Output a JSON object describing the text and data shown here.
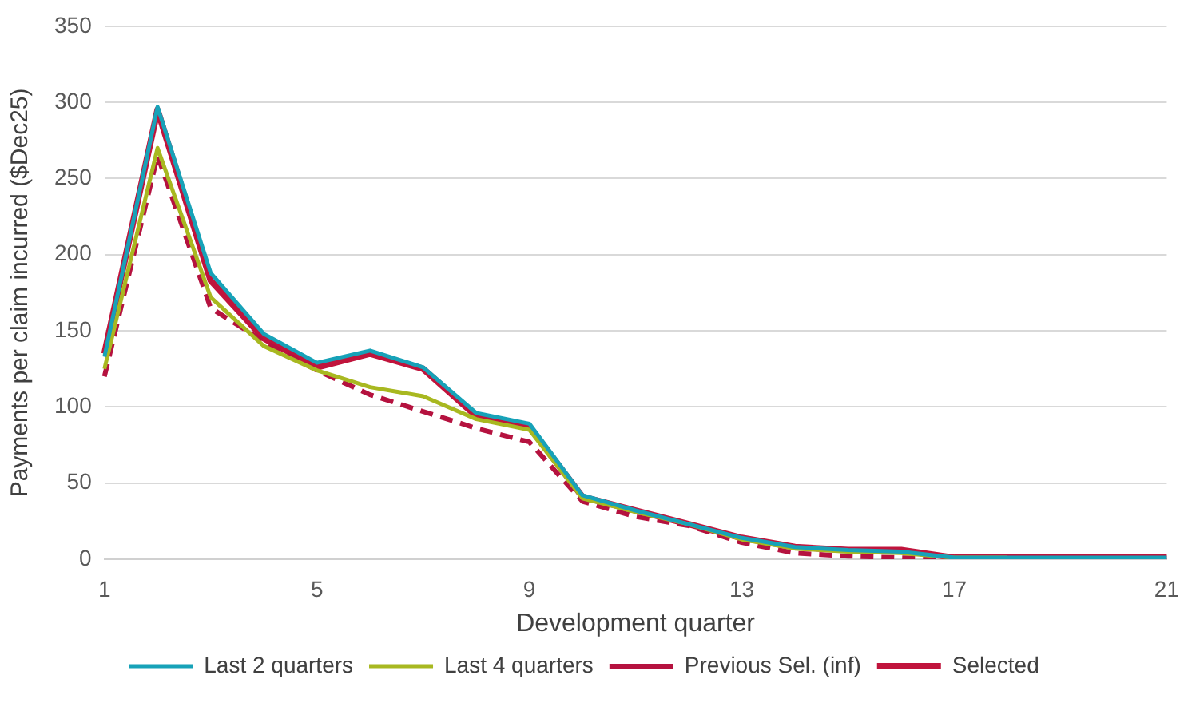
{
  "chart_data": {
    "type": "line",
    "xlabel": "Development quarter",
    "ylabel": "Payments per claim incurred ($Dec25)",
    "categories": [
      "1",
      null,
      null,
      null,
      "5",
      null,
      null,
      null,
      "9",
      null,
      null,
      null,
      "13",
      null,
      null,
      null,
      "17",
      null,
      null,
      null,
      "21"
    ],
    "ylim": [
      0,
      350
    ],
    "yticks": [
      0,
      50,
      100,
      150,
      200,
      250,
      300,
      350
    ],
    "grid": "y",
    "legend": "bottom",
    "marker": "none",
    "series": [
      {
        "name": "Last 2 quarters",
        "color": "#17a2b8",
        "values": [
          133,
          297,
          188,
          148,
          129,
          137,
          126,
          96,
          89,
          42,
          32,
          23,
          14,
          8,
          6,
          5,
          1,
          1,
          1,
          1,
          1
        ]
      },
      {
        "name": "Last 4 quarters",
        "color": "#a8b820",
        "values": [
          125,
          270,
          172,
          140,
          124,
          113,
          107,
          92,
          85,
          40,
          31,
          23,
          13,
          7,
          5,
          4,
          1,
          1,
          null,
          null,
          null
        ]
      },
      {
        "name": "Previous Sel. (inf)",
        "color": "#b5123f",
        "line_style": "dashed",
        "values": [
          120,
          265,
          165,
          143,
          124,
          108,
          97,
          86,
          77,
          38,
          28,
          22,
          11,
          4,
          2,
          1,
          0,
          0,
          0,
          0,
          0
        ]
      },
      {
        "name": "Selected",
        "color": "#c0143c",
        "values": [
          135,
          295,
          183,
          145,
          126,
          135,
          125,
          94,
          87,
          41,
          32,
          23,
          14,
          8,
          6,
          6,
          1,
          1,
          1,
          1,
          1
        ]
      }
    ]
  }
}
